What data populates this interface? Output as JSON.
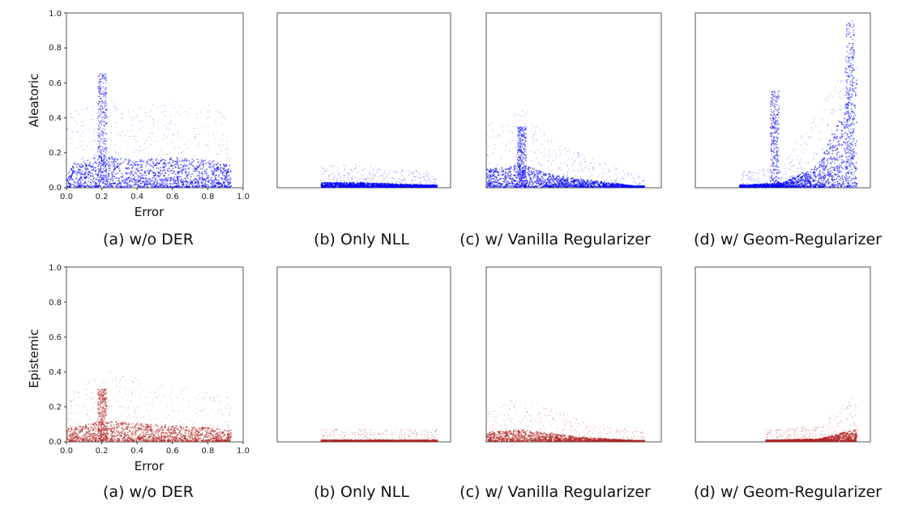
{
  "captions": {
    "a": "(a) w/o DER",
    "b": "(b) Only NLL",
    "c": "(c) w/ Vanilla Regularizer",
    "d": "(d) w/ Geom-Regularizer"
  },
  "axis_labels": {
    "x": "Error",
    "y_top": "Aleatoric",
    "y_bottom": "Epistemic"
  },
  "ticks": [
    "0.0",
    "0.2",
    "0.4",
    "0.6",
    "0.8",
    "1.0"
  ],
  "colors": {
    "aleatoric": "#0000ff",
    "epistemic": "#b22222",
    "frame": "#555555"
  },
  "chart_data": [
    {
      "type": "scatter",
      "row": "aleatoric",
      "panel": "a",
      "xlabel": "Error",
      "ylabel": "Aleatoric",
      "xlim": [
        0,
        1
      ],
      "ylim": [
        0,
        1
      ],
      "color": "#0000ff",
      "x_range": [
        0.0,
        0.93
      ],
      "y_typical": 0.11,
      "density_profile": [
        [
          0.02,
          0.1
        ],
        [
          0.2,
          0.14
        ],
        [
          0.4,
          0.12
        ],
        [
          0.6,
          0.13
        ],
        [
          0.8,
          0.12
        ],
        [
          0.92,
          0.1
        ]
      ],
      "peak_features": [
        {
          "x": 0.2,
          "y_max": 0.65
        }
      ]
    },
    {
      "type": "scatter",
      "row": "aleatoric",
      "panel": "b",
      "xlim": [
        0,
        1
      ],
      "ylim": [
        0,
        1
      ],
      "color": "#0000ff",
      "x_range": [
        0.25,
        0.92
      ],
      "y_typical": 0.01,
      "density_profile": [
        [
          0.3,
          0.02
        ],
        [
          0.45,
          0.02
        ],
        [
          0.85,
          0.01
        ]
      ]
    },
    {
      "type": "scatter",
      "row": "aleatoric",
      "panel": "c",
      "xlim": [
        0,
        1
      ],
      "ylim": [
        0,
        1
      ],
      "color": "#0000ff",
      "x_range": [
        0.0,
        0.9
      ],
      "y_typical": 0.05,
      "density_profile": [
        [
          0.0,
          0.08
        ],
        [
          0.2,
          0.1
        ],
        [
          0.4,
          0.05
        ],
        [
          0.6,
          0.03
        ],
        [
          0.85,
          0.005
        ]
      ],
      "peak_features": [
        {
          "x": 0.2,
          "y_max": 0.35
        }
      ]
    },
    {
      "type": "scatter",
      "row": "aleatoric",
      "panel": "d",
      "xlim": [
        0,
        1
      ],
      "ylim": [
        0,
        1
      ],
      "color": "#0000ff",
      "x_range": [
        0.25,
        0.92
      ],
      "y_typical": 0.1,
      "density_profile": [
        [
          0.3,
          0.01
        ],
        [
          0.5,
          0.02
        ],
        [
          0.7,
          0.1
        ],
        [
          0.85,
          0.35
        ],
        [
          0.9,
          0.5
        ]
      ],
      "peak_features": [
        {
          "x": 0.45,
          "y_max": 0.55
        },
        {
          "x": 0.88,
          "y_max": 0.95
        }
      ]
    },
    {
      "type": "scatter",
      "row": "epistemic",
      "panel": "a",
      "xlabel": "Error",
      "ylabel": "Epistemic",
      "xlim": [
        0,
        1
      ],
      "ylim": [
        0,
        1
      ],
      "color": "#b22222",
      "x_range": [
        0.0,
        0.93
      ],
      "y_typical": 0.06,
      "density_profile": [
        [
          0.02,
          0.06
        ],
        [
          0.2,
          0.09
        ],
        [
          0.4,
          0.08
        ],
        [
          0.6,
          0.07
        ],
        [
          0.8,
          0.06
        ],
        [
          0.92,
          0.05
        ]
      ],
      "peak_features": [
        {
          "x": 0.2,
          "y_max": 0.3
        }
      ]
    },
    {
      "type": "scatter",
      "row": "epistemic",
      "panel": "b",
      "xlim": [
        0,
        1
      ],
      "ylim": [
        0,
        1
      ],
      "color": "#b22222",
      "x_range": [
        0.25,
        0.92
      ],
      "y_typical": 0.005,
      "density_profile": [
        [
          0.3,
          0.005
        ],
        [
          0.5,
          0.005
        ],
        [
          0.85,
          0.005
        ]
      ]
    },
    {
      "type": "scatter",
      "row": "epistemic",
      "panel": "c",
      "xlim": [
        0,
        1
      ],
      "ylim": [
        0,
        1
      ],
      "color": "#b22222",
      "x_range": [
        0.0,
        0.9
      ],
      "y_typical": 0.03,
      "density_profile": [
        [
          0.0,
          0.04
        ],
        [
          0.2,
          0.05
        ],
        [
          0.4,
          0.03
        ],
        [
          0.6,
          0.015
        ],
        [
          0.85,
          0.003
        ]
      ]
    },
    {
      "type": "scatter",
      "row": "epistemic",
      "panel": "d",
      "xlim": [
        0,
        1
      ],
      "ylim": [
        0,
        1
      ],
      "color": "#b22222",
      "x_range": [
        0.4,
        0.92
      ],
      "y_typical": 0.02,
      "density_profile": [
        [
          0.45,
          0.005
        ],
        [
          0.7,
          0.01
        ],
        [
          0.85,
          0.04
        ],
        [
          0.9,
          0.05
        ]
      ]
    }
  ]
}
